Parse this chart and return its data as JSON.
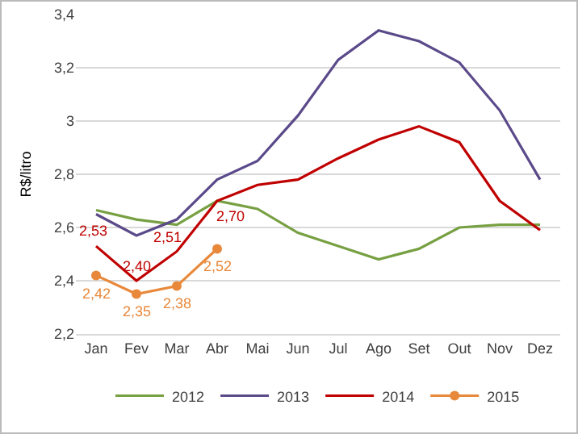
{
  "chart_data": {
    "type": "line",
    "ylabel": "R$/litro",
    "categories": [
      "Jan",
      "Fev",
      "Mar",
      "Abr",
      "Mai",
      "Jun",
      "Jul",
      "Ago",
      "Set",
      "Out",
      "Nov",
      "Dez"
    ],
    "ylim": [
      2.2,
      3.4
    ],
    "yticks": [
      {
        "value": 2.2,
        "label": "2,2"
      },
      {
        "value": 2.4,
        "label": "2,4"
      },
      {
        "value": 2.6,
        "label": "2,6"
      },
      {
        "value": 2.8,
        "label": "2,8"
      },
      {
        "value": 3,
        "label": "3"
      },
      {
        "value": 3.2,
        "label": "3,2"
      },
      {
        "value": 3.4,
        "label": "3,4"
      }
    ],
    "grid": "y",
    "legend": "bottom",
    "line_style": "solid",
    "series": [
      {
        "name": "2012",
        "color": "#77a043",
        "marker": "none",
        "values": [
          2.665,
          2.63,
          2.61,
          2.7,
          2.67,
          2.58,
          2.53,
          2.48,
          2.52,
          2.6,
          2.61,
          2.61
        ]
      },
      {
        "name": "2013",
        "color": "#5b4a8a",
        "marker": "none",
        "values": [
          2.65,
          2.57,
          2.63,
          2.78,
          2.85,
          3.02,
          3.23,
          3.34,
          3.3,
          3.22,
          3.04,
          2.78
        ]
      },
      {
        "name": "2014",
        "color": "#c00000",
        "marker": "none",
        "values": [
          2.53,
          2.4,
          2.51,
          2.7,
          2.76,
          2.78,
          2.86,
          2.93,
          2.98,
          2.92,
          2.7,
          2.59
        ],
        "value_labels": [
          "2,53",
          "2,40",
          "2,51",
          "2,70",
          null,
          null,
          null,
          null,
          null,
          null,
          null,
          null
        ]
      },
      {
        "name": "2015",
        "color": "#e8883a",
        "marker": "circle",
        "values": [
          2.42,
          2.35,
          2.38,
          2.52,
          null,
          null,
          null,
          null,
          null,
          null,
          null,
          null
        ],
        "value_labels": [
          "2,42",
          "2,35",
          "2,38",
          "2,52",
          null,
          null,
          null,
          null,
          null,
          null,
          null,
          null
        ]
      }
    ]
  }
}
